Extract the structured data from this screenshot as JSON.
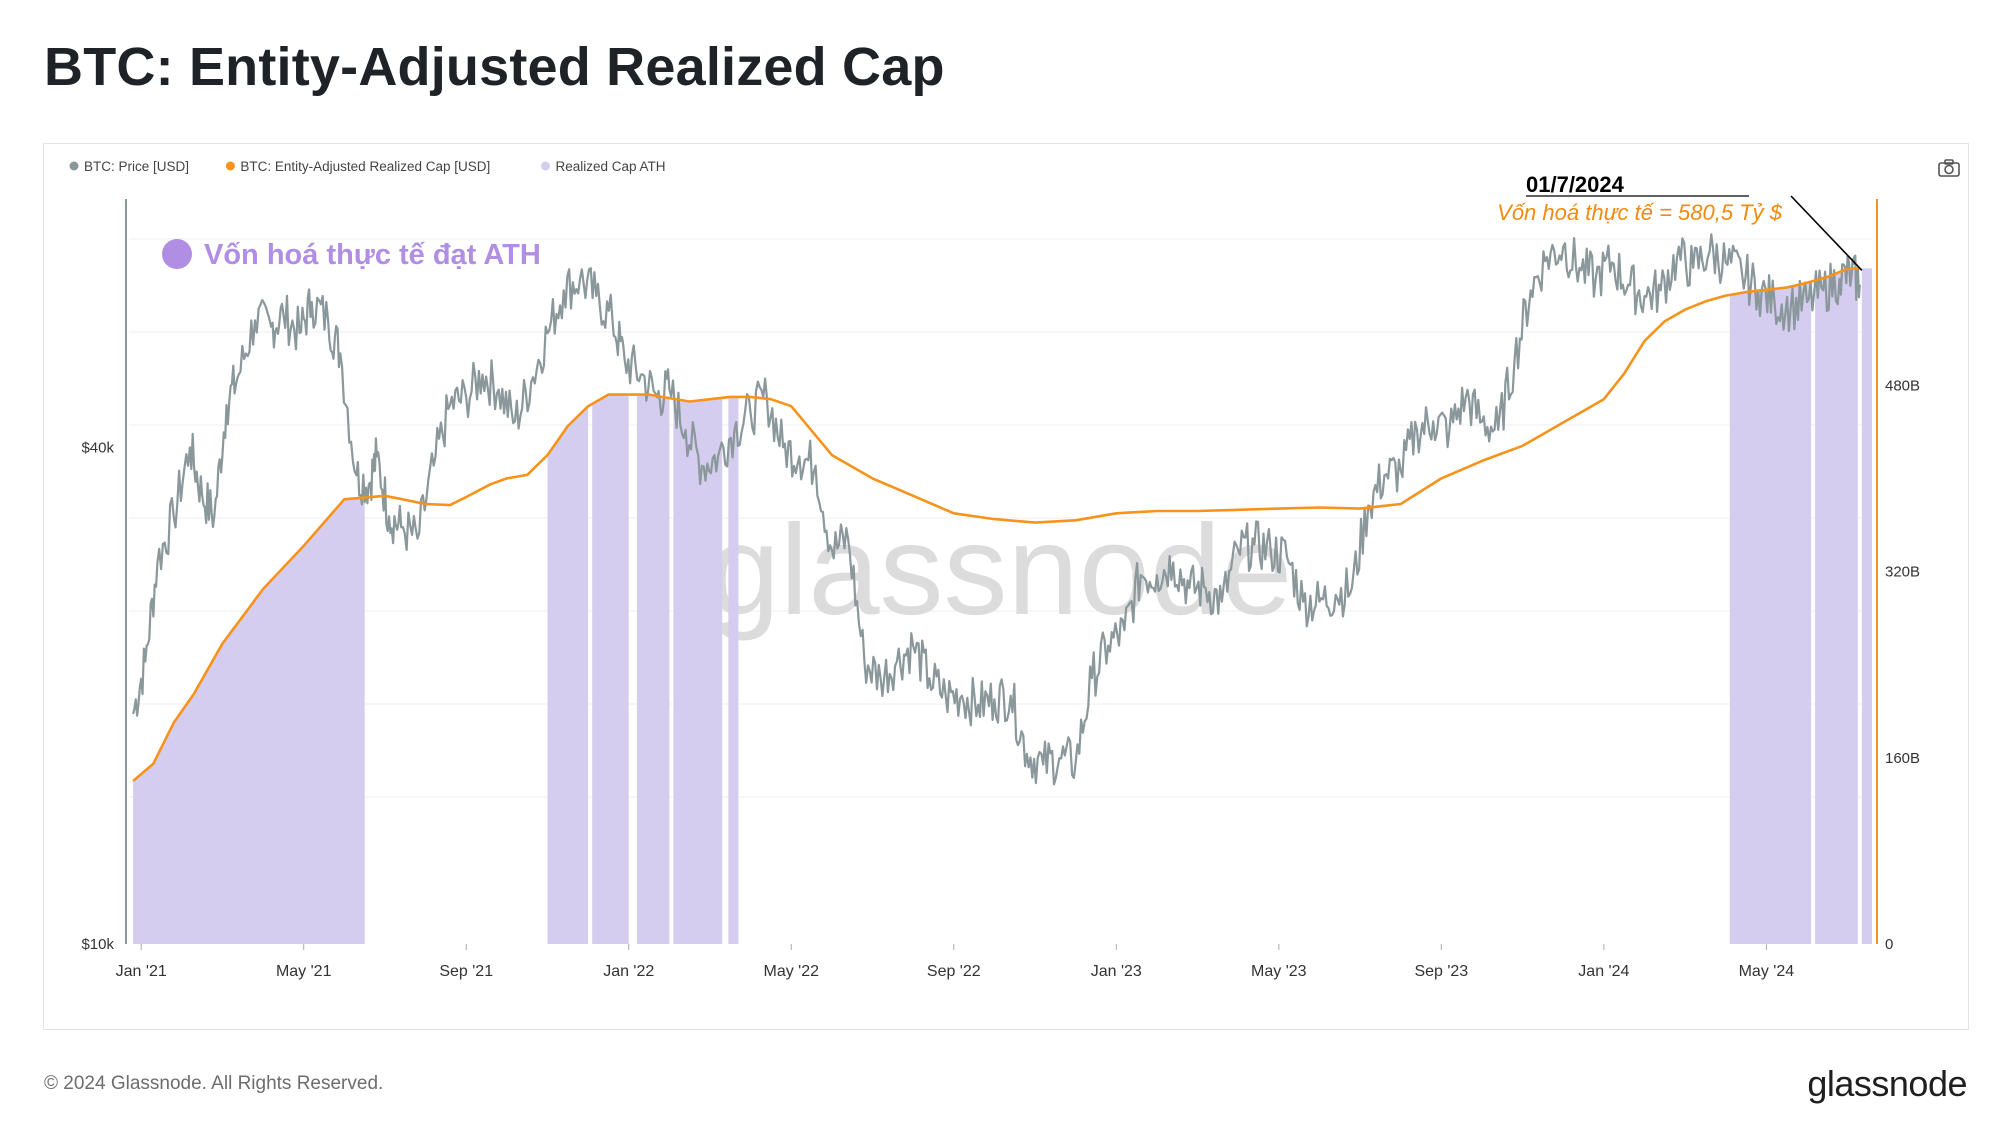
{
  "title": "BTC: Entity-Adjusted Realized Cap",
  "footer": {
    "copyright": "© 2024 Glassnode. All Rights Reserved.",
    "logo": "glassnode"
  },
  "watermark": "glassnode",
  "toolbar": {
    "camera_icon": "camera-icon"
  },
  "colors": {
    "price": "#8a979b",
    "realized_cap": "#f7931a",
    "ath_fill": "#d5cdef",
    "annotation_purple": "#b08ee3",
    "annotation_orange": "#f28a12"
  },
  "chart_data": {
    "type": "line",
    "legend": [
      {
        "name": "BTC: Price [USD]",
        "color": "#8a979b"
      },
      {
        "name": "BTC: Entity-Adjusted Realized Cap [USD]",
        "color": "#f7931a"
      },
      {
        "name": "Realized Cap ATH",
        "color": "#d5cdef"
      }
    ],
    "x_ticks": [
      "Jan '21",
      "May '21",
      "Sep '21",
      "Jan '22",
      "May '22",
      "Sep '22",
      "Jan '23",
      "May '23",
      "Sep '23",
      "Jan '24",
      "May '24"
    ],
    "x_range_months": [
      -0.3,
      42.6
    ],
    "left_axis": {
      "scale": "log",
      "ticks": [
        "$10k",
        "$40k"
      ],
      "tick_values": [
        10000,
        40000
      ],
      "range": [
        10000,
        80000
      ]
    },
    "right_axis": {
      "scale": "linear",
      "ticks": [
        "0",
        "160B",
        "320B",
        "480B"
      ],
      "tick_values": [
        0,
        160,
        320,
        480
      ],
      "range": [
        0,
        640
      ],
      "unit": "B USD"
    },
    "realized_cap_series": {
      "name": "BTC: Entity-Adjusted Realized Cap [USD]",
      "t": [
        -0.2,
        0.3,
        0.8,
        1.3,
        2.0,
        3.0,
        4.0,
        5.0,
        6.0,
        7.0,
        7.6,
        8.0,
        8.6,
        9.0,
        9.5,
        10.0,
        10.5,
        11.0,
        11.5,
        12.0,
        12.5,
        13.0,
        13.5,
        14.0,
        14.5,
        15.0,
        15.5,
        16.0,
        17.0,
        18.0,
        19.0,
        20.0,
        21.0,
        22.0,
        23.0,
        24.0,
        25.0,
        26.0,
        27.0,
        28.0,
        29.0,
        30.0,
        31.0,
        32.0,
        33.0,
        34.0,
        35.0,
        36.0,
        36.5,
        37.0,
        37.5,
        38.0,
        38.5,
        39.0,
        39.5,
        40.0,
        40.5,
        41.0,
        41.5,
        42.0,
        42.3
      ],
      "values": [
        140,
        155,
        190,
        215,
        258,
        305,
        342,
        382,
        385,
        378,
        377,
        384,
        395,
        400,
        403,
        420,
        445,
        462,
        472,
        472,
        472,
        469,
        466,
        468,
        470,
        470,
        468,
        462,
        420,
        400,
        385,
        370,
        365,
        362,
        364,
        370,
        372,
        372,
        373,
        374,
        375,
        374,
        378,
        400,
        415,
        428,
        448,
        468,
        490,
        518,
        535,
        545,
        552,
        557,
        560,
        562,
        564,
        568,
        573,
        580,
        580.5
      ]
    },
    "price_series": {
      "name": "BTC: Price [USD]",
      "t": [
        -0.2,
        0.1,
        0.4,
        0.8,
        1.2,
        1.5,
        1.8,
        2.1,
        2.4,
        2.8,
        3.2,
        3.5,
        3.9,
        4.2,
        4.6,
        4.9,
        5.3,
        5.6,
        5.8,
        6.1,
        6.4,
        6.8,
        7.2,
        7.6,
        8.0,
        8.4,
        8.8,
        9.2,
        9.6,
        10.0,
        10.4,
        10.8,
        11.2,
        11.6,
        11.9,
        12.3,
        12.7,
        13.0,
        13.4,
        13.8,
        14.2,
        14.6,
        15.0,
        15.4,
        15.8,
        16.2,
        16.6,
        17.0,
        17.4,
        17.8,
        18.2,
        18.6,
        19.0,
        19.4,
        19.8,
        20.2,
        20.6,
        21.0,
        21.4,
        21.8,
        22.2,
        22.6,
        23.0,
        23.4,
        23.8,
        24.2,
        24.6,
        25.0,
        25.4,
        25.8,
        26.2,
        26.6,
        27.0,
        27.4,
        27.8,
        28.2,
        28.6,
        29.0,
        29.4,
        29.8,
        30.2,
        30.6,
        31.0,
        31.4,
        31.8,
        32.2,
        32.6,
        33.0,
        33.4,
        33.8,
        34.2,
        34.6,
        35.0,
        35.4,
        35.8,
        36.2,
        36.6,
        37.0,
        37.4,
        37.8,
        38.2,
        38.6,
        39.0,
        39.4,
        39.8,
        40.2,
        40.6,
        41.0,
        41.4,
        41.8,
        42.1,
        42.3
      ],
      "values": [
        19000,
        22000,
        29000,
        33000,
        40000,
        35000,
        33000,
        45000,
        49000,
        57000,
        56000,
        58000,
        55000,
        60000,
        57000,
        52000,
        37000,
        36000,
        39000,
        33000,
        32000,
        31000,
        38000,
        45000,
        46000,
        49000,
        47000,
        43000,
        48000,
        55000,
        62000,
        64000,
        61000,
        57000,
        51000,
        49000,
        46000,
        47000,
        42000,
        38000,
        39000,
        42000,
        44000,
        46000,
        40000,
        39000,
        38000,
        30000,
        31000,
        22000,
        21000,
        22000,
        23000,
        21000,
        20000,
        20000,
        19500,
        19800,
        20000,
        17000,
        16500,
        16800,
        16600,
        21000,
        23000,
        24000,
        28000,
        28000,
        29000,
        27000,
        27000,
        26000,
        30000,
        30500,
        30000,
        29500,
        26000,
        26000,
        26500,
        27000,
        34000,
        37000,
        37500,
        42000,
        43000,
        42000,
        46000,
        43000,
        42000,
        51000,
        62000,
        68000,
        70000,
        66000,
        64000,
        67000,
        63000,
        61000,
        62000,
        68000,
        66000,
        69000,
        67000,
        65000,
        62000,
        60000,
        59000,
        60000,
        62000,
        64000,
        65000,
        63000
      ]
    },
    "ath_ranges_months": [
      [
        -0.2,
        5.5
      ],
      [
        10.0,
        11.0
      ],
      [
        11.1,
        12.0
      ],
      [
        12.2,
        13.0
      ],
      [
        13.1,
        14.3
      ],
      [
        14.45,
        14.7
      ],
      [
        39.1,
        41.1
      ],
      [
        41.2,
        42.25
      ],
      [
        42.35,
        42.6
      ]
    ],
    "annotations": {
      "ath_note": "Vốn hoá thực tế đạt ATH",
      "date_label": "01/7/2024",
      "value_label": "Vốn hoá thực tế = 580,5 Tỷ $"
    }
  }
}
